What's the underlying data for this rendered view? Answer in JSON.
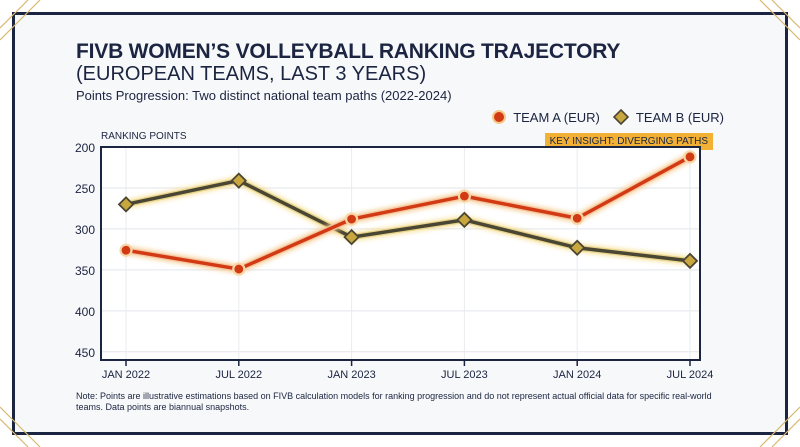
{
  "header": {
    "title_line1": "FIVB WOMEN’S VOLLEYBALL RANKING TRAJECTORY",
    "title_line2": "(EUROPEAN TEAMS, LAST 3 YEARS)",
    "subtitle": "Points Progression: Two distinct national team paths (2022-2024)"
  },
  "legend": {
    "team_a": "TEAM A (EUR)",
    "team_b": "TEAM B (EUR)"
  },
  "insight_badge": "KEY INSIGHT: DIVERGING PATHS",
  "footnote": "Note: Points are illustrative estimations based on FIVB calculation models for ranking progression and do not represent actual official data for specific real-world teams. Data points are biannual snapshots.",
  "colors": {
    "team_a": "#d23a14",
    "team_a_glow": "#f4c98a",
    "team_b": "#4a4634",
    "team_b_marker": "#c9a73e",
    "navy": "#1b2440",
    "accent": "#f2b035"
  },
  "chart_data": {
    "type": "line",
    "title": "FIVB WOMEN’S VOLLEYBALL RANKING TRAJECTORY (EUROPEAN TEAMS, LAST 3 YEARS)",
    "subtitle": "Points Progression: Two distinct national team paths (2022-2024)",
    "xlabel": "",
    "ylabel": "RANKING POINTS",
    "categories": [
      "JAN 2022",
      "JUL 2022",
      "JAN 2023",
      "JUL 2023",
      "JAN 2024",
      "JUL 2024"
    ],
    "y_ticks": [
      200,
      250,
      300,
      350,
      400,
      450
    ],
    "ylim": [
      460,
      200
    ],
    "y_inverted": true,
    "grid": true,
    "legend_position": "top-right",
    "series": [
      {
        "name": "TEAM A (EUR)",
        "values": [
          326,
          349,
          288,
          260,
          287,
          212
        ]
      },
      {
        "name": "TEAM B (EUR)",
        "values": [
          270,
          241,
          310,
          289,
          323,
          339
        ]
      }
    ]
  }
}
